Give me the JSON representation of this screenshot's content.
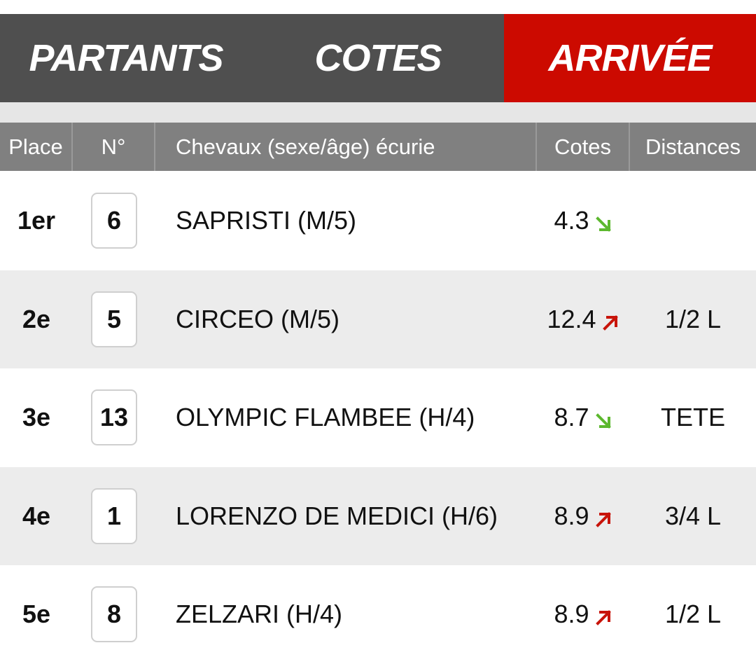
{
  "tabs": [
    {
      "label": "PARTANTS",
      "active": false
    },
    {
      "label": "COTES",
      "active": false
    },
    {
      "label": "ARRIVÉE",
      "active": true
    }
  ],
  "table": {
    "headers": {
      "place": "Place",
      "number": "N°",
      "horse": "Chevaux (sexe/âge) écurie",
      "odds": "Cotes",
      "distances": "Distances"
    },
    "rows": [
      {
        "place": "1er",
        "number": "6",
        "horse": "SAPRISTI (M/5)",
        "odds": "4.3",
        "trend": "down",
        "distance": ""
      },
      {
        "place": "2e",
        "number": "5",
        "horse": "CIRCEO (M/5)",
        "odds": "12.4",
        "trend": "up",
        "distance": "1/2 L"
      },
      {
        "place": "3e",
        "number": "13",
        "horse": "OLYMPIC FLAMBEE (H/4)",
        "odds": "8.7",
        "trend": "down",
        "distance": "TETE"
      },
      {
        "place": "4e",
        "number": "1",
        "horse": "LORENZO DE MEDICI (H/6)",
        "odds": "8.9",
        "trend": "up",
        "distance": "3/4 L"
      },
      {
        "place": "5e",
        "number": "8",
        "horse": "ZELZARI (H/4)",
        "odds": "8.9",
        "trend": "up",
        "distance": "1/2 L"
      }
    ]
  },
  "colors": {
    "tab_bg": "#4f4f4f",
    "tab_active_bg": "#cc0a00",
    "header_bg": "#808080",
    "trend_down": "#5cb82e",
    "trend_up": "#c8140a"
  },
  "icons": {
    "down": "arrow-down-right-icon",
    "up": "arrow-up-right-icon"
  }
}
